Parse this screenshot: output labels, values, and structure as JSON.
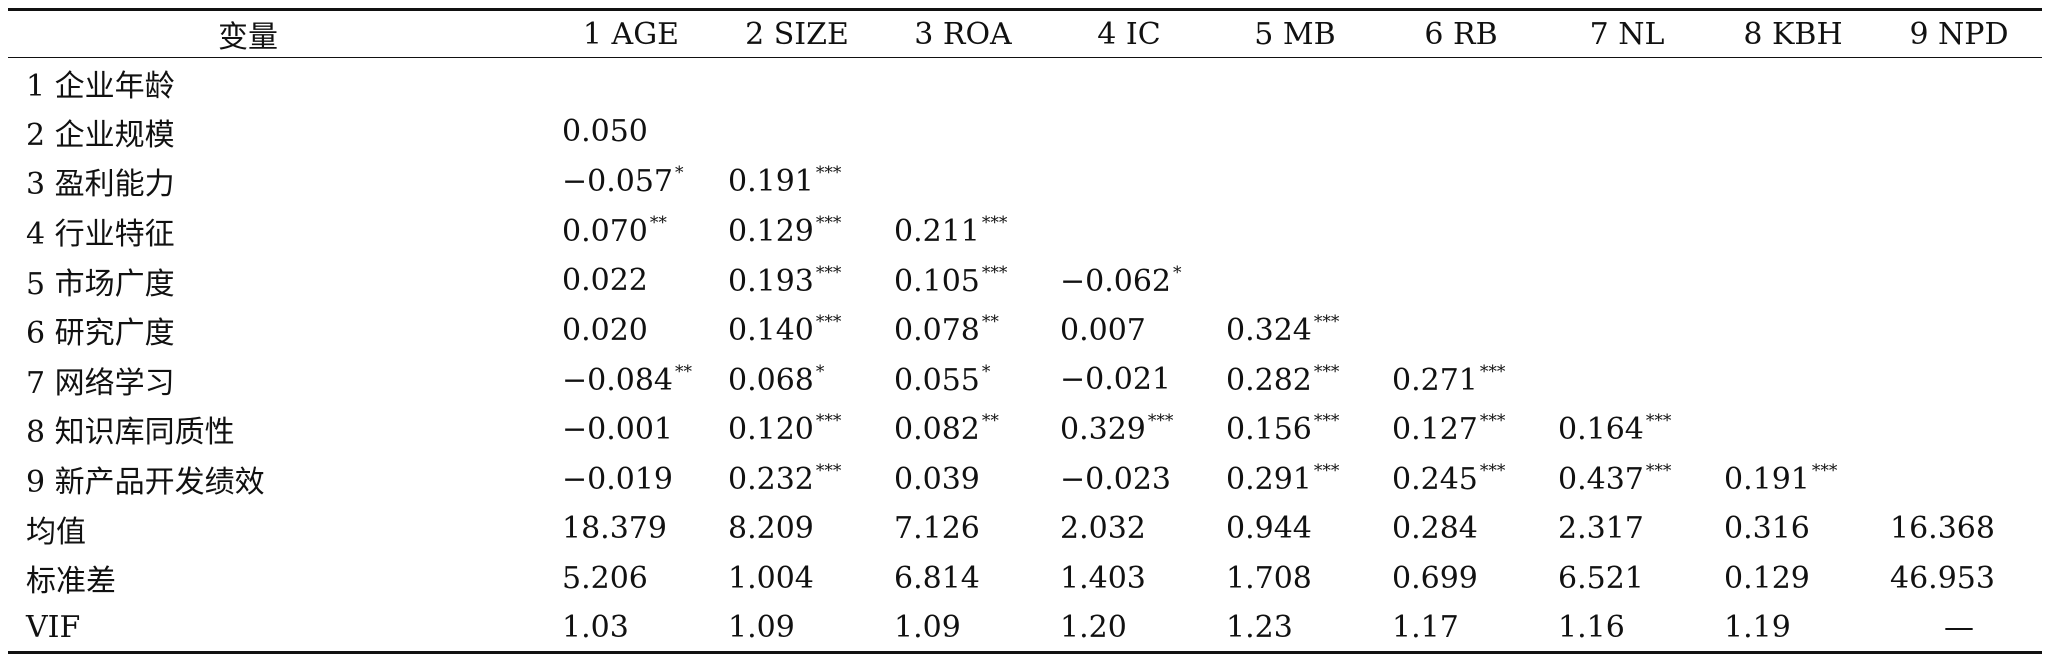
{
  "table": {
    "headers": [
      "变量",
      "1 AGE",
      "2 SIZE",
      "3 ROA",
      "4 IC",
      "5 MB",
      "6 RB",
      "7 NL",
      "8 KBH",
      "9 NPD"
    ],
    "rows": [
      {
        "label": "1 企业年龄",
        "cells": []
      },
      {
        "label": "2 企业规模",
        "cells": [
          {
            "v": "0.050",
            "s": ""
          }
        ]
      },
      {
        "label": "3 盈利能力",
        "cells": [
          {
            "v": "−0.057",
            "s": "*"
          },
          {
            "v": "0.191",
            "s": "***"
          }
        ]
      },
      {
        "label": "4 行业特征",
        "cells": [
          {
            "v": "0.070",
            "s": "**"
          },
          {
            "v": "0.129",
            "s": "***"
          },
          {
            "v": "0.211",
            "s": "***"
          }
        ]
      },
      {
        "label": "5 市场广度",
        "cells": [
          {
            "v": "0.022",
            "s": ""
          },
          {
            "v": "0.193",
            "s": "***"
          },
          {
            "v": "0.105",
            "s": "***"
          },
          {
            "v": "−0.062",
            "s": "*"
          }
        ]
      },
      {
        "label": "6 研究广度",
        "cells": [
          {
            "v": "0.020",
            "s": ""
          },
          {
            "v": "0.140",
            "s": "***"
          },
          {
            "v": "0.078",
            "s": "**"
          },
          {
            "v": "0.007",
            "s": ""
          },
          {
            "v": "0.324",
            "s": "***"
          }
        ]
      },
      {
        "label": "7 网络学习",
        "cells": [
          {
            "v": "−0.084",
            "s": "**"
          },
          {
            "v": "0.068",
            "s": "*"
          },
          {
            "v": "0.055",
            "s": "*"
          },
          {
            "v": "−0.021",
            "s": ""
          },
          {
            "v": "0.282",
            "s": "***"
          },
          {
            "v": "0.271",
            "s": "***"
          }
        ]
      },
      {
        "label": "8 知识库同质性",
        "cells": [
          {
            "v": "−0.001",
            "s": ""
          },
          {
            "v": "0.120",
            "s": "***"
          },
          {
            "v": "0.082",
            "s": "**"
          },
          {
            "v": "0.329",
            "s": "***"
          },
          {
            "v": "0.156",
            "s": "***"
          },
          {
            "v": "0.127",
            "s": "***"
          },
          {
            "v": "0.164",
            "s": "***"
          }
        ]
      },
      {
        "label": "9 新产品开发绩效",
        "cells": [
          {
            "v": "−0.019",
            "s": ""
          },
          {
            "v": "0.232",
            "s": "***"
          },
          {
            "v": "0.039",
            "s": ""
          },
          {
            "v": "−0.023",
            "s": ""
          },
          {
            "v": "0.291",
            "s": "***"
          },
          {
            "v": "0.245",
            "s": "***"
          },
          {
            "v": "0.437",
            "s": "***"
          },
          {
            "v": "0.191",
            "s": "***"
          }
        ]
      },
      {
        "label": "均值",
        "cells": [
          {
            "v": "18.379",
            "s": ""
          },
          {
            "v": "8.209",
            "s": ""
          },
          {
            "v": "7.126",
            "s": ""
          },
          {
            "v": "2.032",
            "s": ""
          },
          {
            "v": "0.944",
            "s": ""
          },
          {
            "v": "0.284",
            "s": ""
          },
          {
            "v": "2.317",
            "s": ""
          },
          {
            "v": "0.316",
            "s": ""
          },
          {
            "v": "16.368",
            "s": ""
          }
        ]
      },
      {
        "label": "标准差",
        "cells": [
          {
            "v": "5.206",
            "s": ""
          },
          {
            "v": "1.004",
            "s": ""
          },
          {
            "v": "6.814",
            "s": ""
          },
          {
            "v": "1.403",
            "s": ""
          },
          {
            "v": "1.708",
            "s": ""
          },
          {
            "v": "0.699",
            "s": ""
          },
          {
            "v": "6.521",
            "s": ""
          },
          {
            "v": "0.129",
            "s": ""
          },
          {
            "v": "46.953",
            "s": ""
          }
        ]
      },
      {
        "label": "VIF",
        "cells": [
          {
            "v": "1.03",
            "s": ""
          },
          {
            "v": "1.09",
            "s": ""
          },
          {
            "v": "1.09",
            "s": ""
          },
          {
            "v": "1.20",
            "s": ""
          },
          {
            "v": "1.23",
            "s": ""
          },
          {
            "v": "1.17",
            "s": ""
          },
          {
            "v": "1.16",
            "s": ""
          },
          {
            "v": "1.19",
            "s": ""
          },
          {
            "v": "—",
            "s": ""
          }
        ]
      }
    ]
  }
}
